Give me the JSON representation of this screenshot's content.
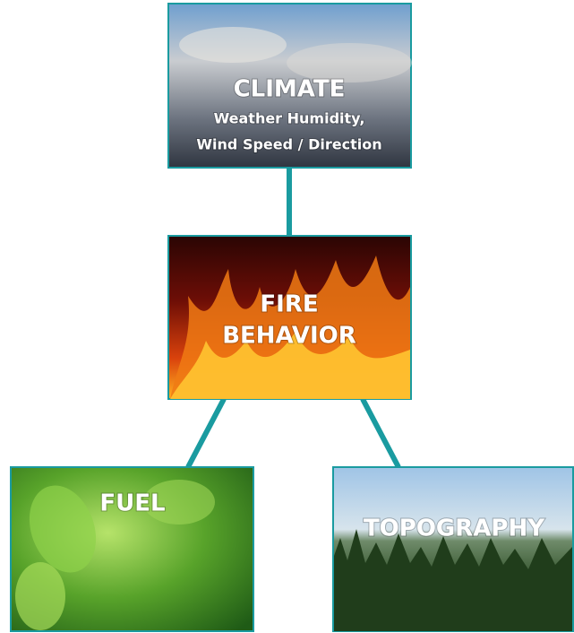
{
  "nodes": [
    {
      "title": "CLIMATE",
      "details": [
        "Weather Humidity,",
        "Wind Speed / Direction"
      ]
    },
    {
      "title": [
        "FIRE",
        "BEHAVIOR"
      ]
    },
    {
      "title": "FUEL"
    },
    {
      "title": "TOPOGRAPHY"
    }
  ]
}
